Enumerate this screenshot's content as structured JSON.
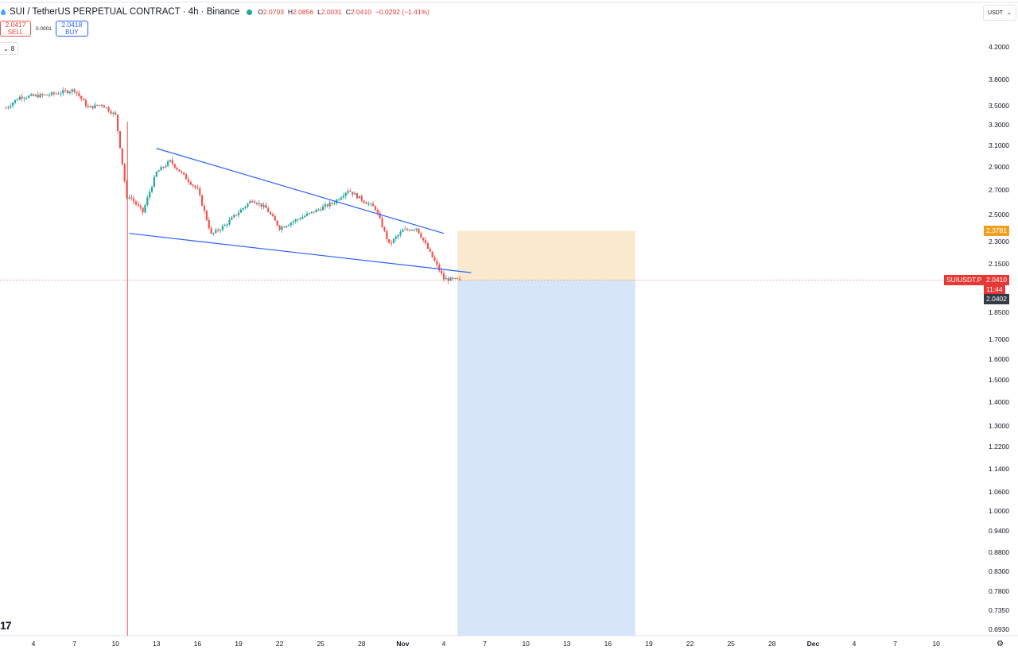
{
  "header": {
    "title": "SUI / TetherUS PERPETUAL CONTRACT · 4h · Binance",
    "o_label": "O",
    "o_value": "2.0703",
    "h_label": "H",
    "h_value": "2.0856",
    "l_label": "L",
    "l_value": "2.0031",
    "c_label": "C",
    "c_value": "2.0410",
    "change": "−0.0292 (−1.41%)"
  },
  "trade": {
    "sell_price": "2.0417",
    "sell_label": "SELL",
    "spread": "0.0001",
    "buy_price": "2.0418",
    "buy_label": "BUY"
  },
  "indicator_count": "8",
  "currency_selector": "USDT",
  "price_axis": {
    "ticks": [
      "4.2000",
      "3.8000",
      "3.5000",
      "3.3000",
      "3.1000",
      "2.9000",
      "2.7000",
      "2.5000",
      "2.3000",
      "2.1500",
      "1.8500",
      "1.7000",
      "1.6000",
      "1.5000",
      "1.4000",
      "1.3000",
      "1.2200",
      "1.1400",
      "1.0600",
      "1.0000",
      "0.9400",
      "0.8800",
      "0.8300",
      "0.7800",
      "0.7350",
      "0.6930"
    ],
    "target_price": "2.3781",
    "symbol_tag": "SUIUSDT.P",
    "last_price": "2.0410",
    "countdown": "11:44",
    "entry_price": "2.0402"
  },
  "time_axis": {
    "ticks": [
      "4",
      "7",
      "10",
      "13",
      "16",
      "19",
      "22",
      "25",
      "28",
      "Nov",
      "4",
      "7",
      "10",
      "13",
      "16",
      "19",
      "22",
      "25",
      "28",
      "Dec",
      "4",
      "7",
      "10"
    ]
  },
  "colors": {
    "up": "#26a69a",
    "down": "#ef5350",
    "trendline": "#2962ff",
    "target_zone": "#f9e9cf",
    "stop_zone": "#d6e6f8",
    "last_price_tag": "#e53935"
  },
  "icons": {
    "logo": "tradingview-logo",
    "settings": "gear-icon"
  },
  "chart_data": {
    "type": "candlestick",
    "title": "SUI / TetherUS PERPETUAL CONTRACT · 4h · Binance",
    "timeframe": "4h",
    "y_scale": "log",
    "ylim": [
      0.68,
      4.45
    ],
    "x_range": [
      "Oct 2",
      "Dec 11"
    ],
    "waypoints": [
      {
        "date": "Oct 2",
        "close": 3.48
      },
      {
        "date": "Oct 3",
        "close": 3.6
      },
      {
        "date": "Oct 5",
        "close": 3.62
      },
      {
        "date": "Oct 7",
        "close": 3.68
      },
      {
        "date": "Oct 8",
        "close": 3.48
      },
      {
        "date": "Oct 9",
        "close": 3.52
      },
      {
        "date": "Oct 10",
        "close": 3.4
      },
      {
        "date": "Oct 10 21h",
        "close": 2.58
      },
      {
        "date": "Oct 11",
        "close": 2.65
      },
      {
        "date": "Oct 12",
        "close": 2.52
      },
      {
        "date": "Oct 13",
        "close": 2.85
      },
      {
        "date": "Oct 14",
        "close": 2.95
      },
      {
        "date": "Oct 15",
        "close": 2.82
      },
      {
        "date": "Oct 16",
        "close": 2.7
      },
      {
        "date": "Oct 17",
        "close": 2.35
      },
      {
        "date": "Oct 18",
        "close": 2.42
      },
      {
        "date": "Oct 20",
        "close": 2.62
      },
      {
        "date": "Oct 21",
        "close": 2.55
      },
      {
        "date": "Oct 22",
        "close": 2.4
      },
      {
        "date": "Oct 24",
        "close": 2.5
      },
      {
        "date": "Oct 26",
        "close": 2.6
      },
      {
        "date": "Oct 27",
        "close": 2.7
      },
      {
        "date": "Oct 28",
        "close": 2.62
      },
      {
        "date": "Oct 29",
        "close": 2.55
      },
      {
        "date": "Oct 30",
        "close": 2.28
      },
      {
        "date": "Oct 31",
        "close": 2.38
      },
      {
        "date": "Nov 1",
        "close": 2.4
      },
      {
        "date": "Nov 2",
        "close": 2.22
      },
      {
        "date": "Nov 3",
        "close": 2.05
      },
      {
        "date": "Nov 4 08h",
        "close": 2.041
      }
    ],
    "trendlines": [
      {
        "name": "upper",
        "from": {
          "date": "Oct 13",
          "price": 3.07
        },
        "to": {
          "date": "Nov 3",
          "price": 2.36
        }
      },
      {
        "name": "lower",
        "from": {
          "date": "Oct 11",
          "price": 2.36
        },
        "to": {
          "date": "Nov 5",
          "price": 2.09
        }
      }
    ],
    "position": {
      "side": "short",
      "from": "Nov 4",
      "to": "Nov 17",
      "entry": 2.0402,
      "target_top": 2.3781,
      "bottom_beyond": 0.693
    },
    "event_marker": {
      "date": "Oct 10 21h"
    }
  }
}
